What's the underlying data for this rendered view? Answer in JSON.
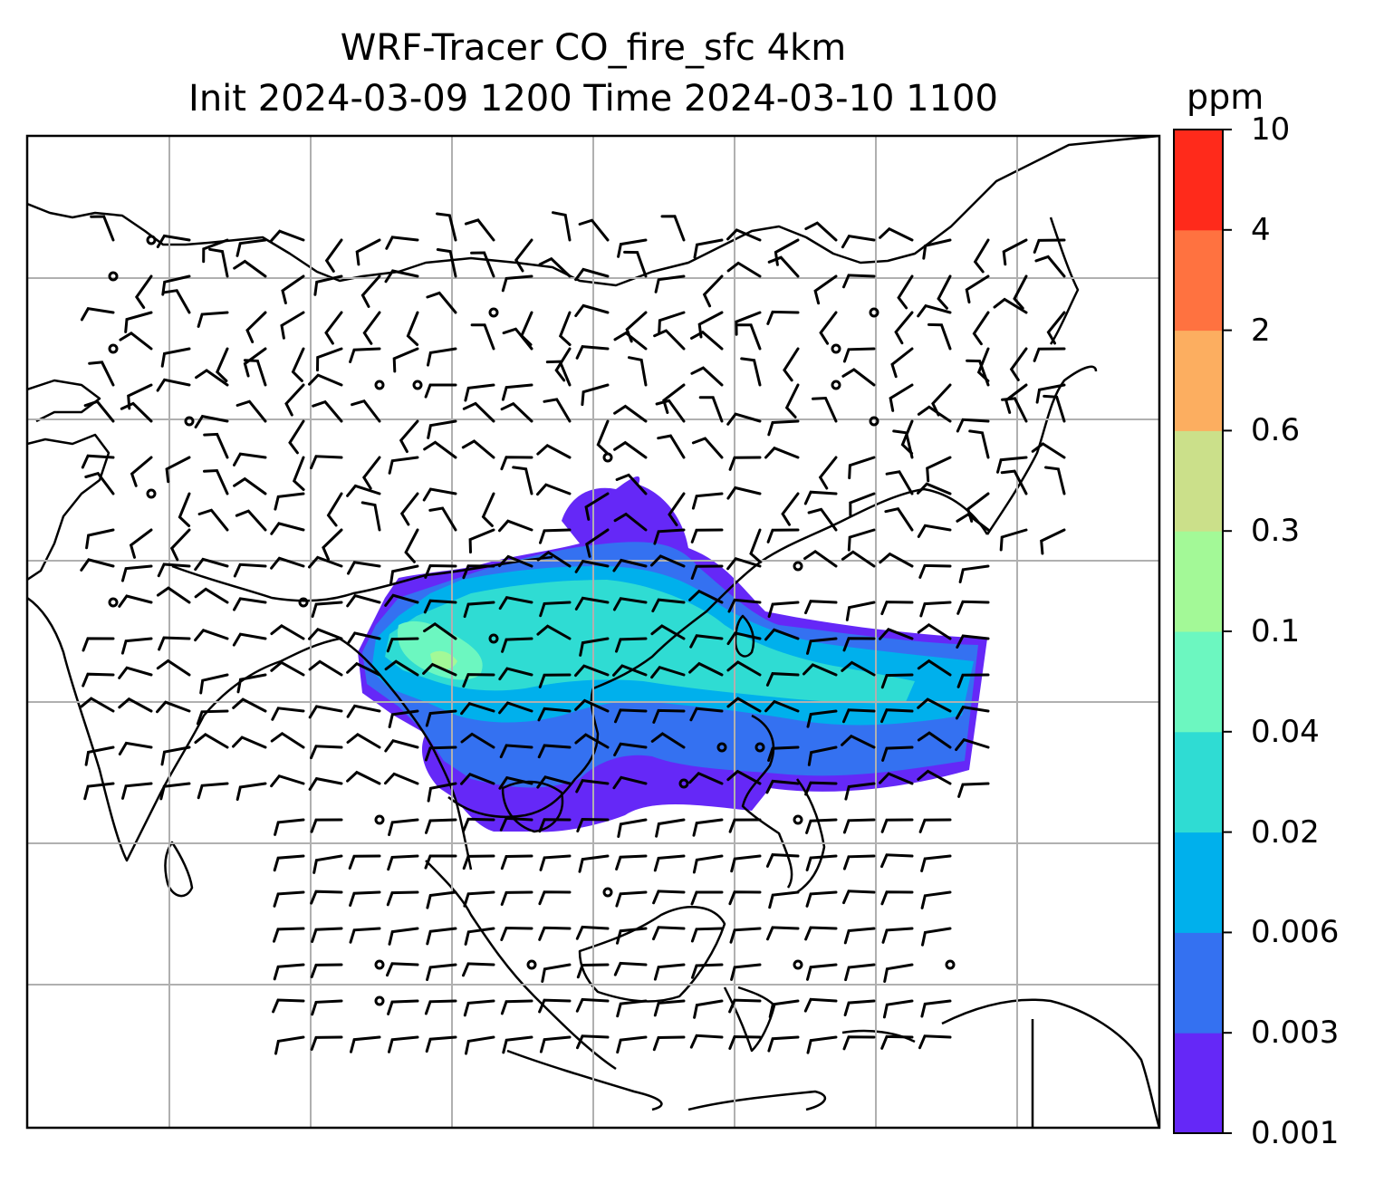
{
  "title": {
    "line1": "WRF-Tracer CO_fire_sfc 4km",
    "line2": "Init 2024-03-09 1200 Time 2024-03-10 1100"
  },
  "colorbar": {
    "unit": "ppm",
    "levels": [
      "0.001",
      "0.003",
      "0.006",
      "0.02",
      "0.04",
      "0.1",
      "0.3",
      "0.6",
      "2",
      "4",
      "10"
    ],
    "colors": [
      "#6528f7",
      "#3471f1",
      "#00b0ec",
      "#2fdcd3",
      "#6cf7c0",
      "#a3f997",
      "#cbe08a",
      "#fcae60",
      "#ff7240",
      "#ff2a1b"
    ]
  },
  "map": {
    "field": "CO_fire_sfc",
    "wind_barbs": true,
    "coastlines": true,
    "gridlines": true
  }
}
